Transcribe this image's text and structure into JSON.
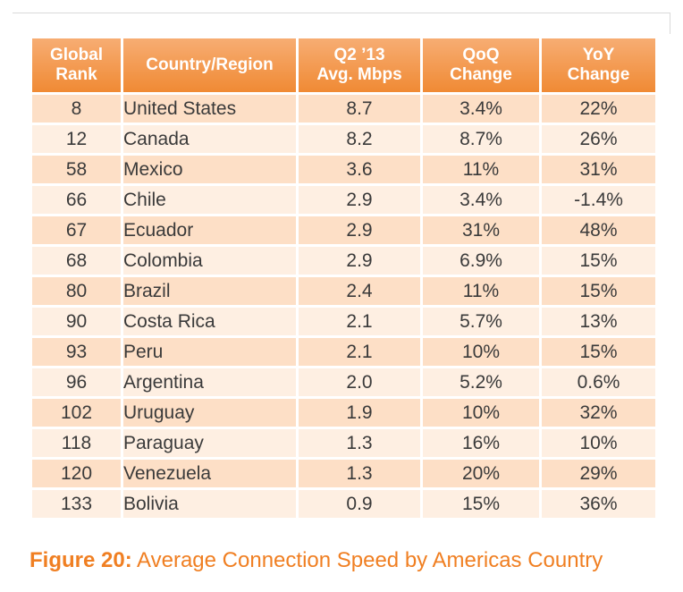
{
  "table": {
    "headers": [
      [
        "Global",
        "Rank"
      ],
      [
        "Country/Region",
        ""
      ],
      [
        "Q2 ’13",
        "Avg. Mbps"
      ],
      [
        "QoQ",
        "Change"
      ],
      [
        "YoY",
        "Change"
      ]
    ],
    "rows": [
      [
        "8",
        "United States",
        "8.7",
        "3.4%",
        "22%"
      ],
      [
        "12",
        "Canada",
        "8.2",
        "8.7%",
        "26%"
      ],
      [
        "58",
        "Mexico",
        "3.6",
        "11%",
        "31%"
      ],
      [
        "66",
        "Chile",
        "2.9",
        "3.4%",
        "-1.4%"
      ],
      [
        "67",
        "Ecuador",
        "2.9",
        "31%",
        "48%"
      ],
      [
        "68",
        "Colombia",
        "2.9",
        "6.9%",
        "15%"
      ],
      [
        "80",
        "Brazil",
        "2.4",
        "11%",
        "15%"
      ],
      [
        "90",
        "Costa Rica",
        "2.1",
        "5.7%",
        "13%"
      ],
      [
        "93",
        "Peru",
        "2.1",
        "10%",
        "15%"
      ],
      [
        "96",
        "Argentina",
        "2.0",
        "5.2%",
        "0.6%"
      ],
      [
        "102",
        "Uruguay",
        "1.9",
        "10%",
        "32%"
      ],
      [
        "118",
        "Paraguay",
        "1.3",
        "16%",
        "10%"
      ],
      [
        "120",
        "Venezuela",
        "1.3",
        "20%",
        "29%"
      ],
      [
        "133",
        "Bolivia",
        "0.9",
        "15%",
        "36%"
      ]
    ]
  },
  "caption": {
    "label": "Figure 20:",
    "text": " Average Connection Speed by Americas Country"
  },
  "colors": {
    "accent": "#f07f22",
    "header_top": "#f7ad73",
    "header_bottom": "#f08a34",
    "row_dark": "#fddfc6",
    "row_light": "#feefe2"
  }
}
